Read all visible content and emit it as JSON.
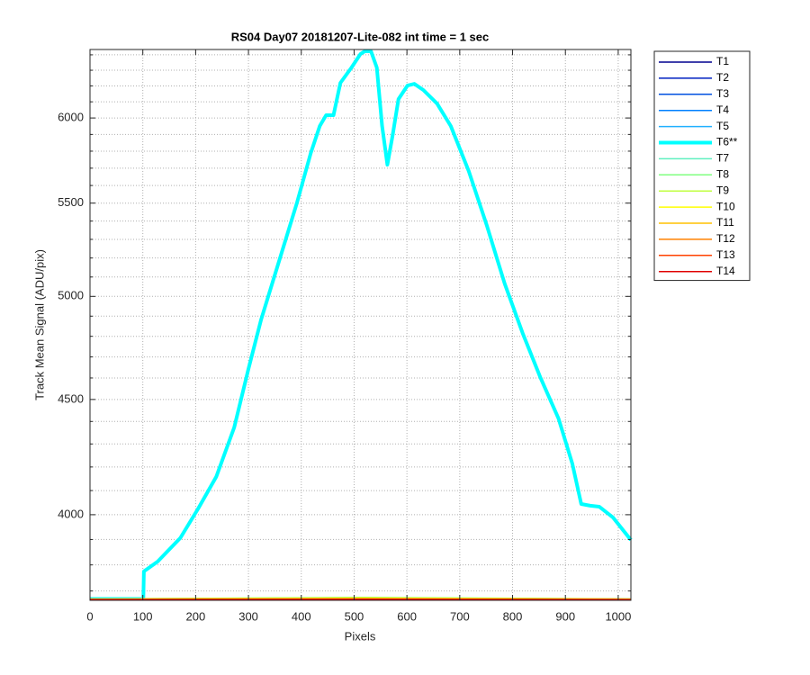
{
  "chart_data": {
    "type": "line",
    "title": "RS04 Day07 20181207-Lite-082 int time = 1 sec",
    "x_label": "Pixels",
    "y_label": "Track Mean Signal (ADU/pix)",
    "xlim": [
      0,
      1024
    ],
    "ylim": [
      3665,
      6435
    ],
    "yscale": "log",
    "grid": true,
    "xticks": [
      0,
      100,
      200,
      300,
      400,
      500,
      600,
      700,
      800,
      900,
      1000
    ],
    "yticks": [
      4000,
      4500,
      5000,
      5500,
      6000
    ],
    "minor_yticks": [
      3700,
      3800,
      3900,
      4100,
      4200,
      4300,
      4400,
      4600,
      4700,
      4800,
      4900,
      5100,
      5200,
      5300,
      5400,
      5600,
      5700,
      5800,
      5900,
      6100,
      6200,
      6300,
      6400
    ],
    "legend_position": "outside-right-top",
    "series": [
      {
        "name": "T1",
        "color": "#00008f",
        "linewidth": 1.5,
        "x": [
          0,
          512,
          1024
        ],
        "values": [
          3668,
          3668,
          3668
        ]
      },
      {
        "name": "T2",
        "color": "#0020c0",
        "linewidth": 1.5,
        "x": [
          0,
          512,
          1024
        ],
        "values": [
          3668,
          3669,
          3668
        ]
      },
      {
        "name": "T3",
        "color": "#0050e0",
        "linewidth": 1.5,
        "x": [
          0,
          512,
          1024
        ],
        "values": [
          3668,
          3670,
          3668
        ]
      },
      {
        "name": "T4",
        "color": "#0080ff",
        "linewidth": 1.5,
        "x": [
          0,
          512,
          1024
        ],
        "values": [
          3669,
          3671,
          3669
        ]
      },
      {
        "name": "T5",
        "color": "#20b0ff",
        "linewidth": 1.5,
        "x": [
          0,
          512,
          1024
        ],
        "values": [
          3669,
          3672,
          3669
        ]
      },
      {
        "name": "T6**",
        "color": "#00ffff",
        "linewidth": 4,
        "x": [
          0,
          99,
          101,
          102,
          128,
          171,
          205,
          239,
          273,
          300,
          324,
          358,
          392,
          418,
          435,
          447,
          461,
          474,
          495,
          512,
          520,
          532,
          543,
          553,
          563,
          573,
          584,
          601,
          614,
          631,
          657,
          683,
          717,
          751,
          785,
          819,
          853,
          887,
          913,
          930,
          947,
          964,
          990,
          1024
        ],
        "values": [
          3670,
          3670,
          3672,
          3775,
          3813,
          3906,
          4026,
          4158,
          4373,
          4643,
          4883,
          5184,
          5504,
          5789,
          5951,
          6017,
          6017,
          6219,
          6317,
          6405,
          6423,
          6423,
          6317,
          5951,
          5720,
          5896,
          6117,
          6202,
          6213,
          6174,
          6089,
          5951,
          5683,
          5378,
          5066,
          4816,
          4600,
          4413,
          4215,
          4044,
          4037,
          4033,
          3989,
          3898
        ]
      },
      {
        "name": "T7",
        "color": "#60f0c0",
        "linewidth": 1.5,
        "x": [
          0,
          512,
          1024
        ],
        "values": [
          3670,
          3674,
          3670
        ]
      },
      {
        "name": "T8",
        "color": "#80ff80",
        "linewidth": 1.5,
        "x": [
          0,
          512,
          1024
        ],
        "values": [
          3670,
          3676,
          3670
        ]
      },
      {
        "name": "T9",
        "color": "#c0ff40",
        "linewidth": 1.5,
        "x": [
          0,
          512,
          1024
        ],
        "values": [
          3670,
          3675,
          3670
        ]
      },
      {
        "name": "T10",
        "color": "#ffff00",
        "linewidth": 1.5,
        "x": [
          0,
          512,
          1024
        ],
        "values": [
          3669,
          3673,
          3669
        ]
      },
      {
        "name": "T11",
        "color": "#ffc000",
        "linewidth": 1.5,
        "x": [
          0,
          512,
          1024
        ],
        "values": [
          3669,
          3671,
          3669
        ]
      },
      {
        "name": "T12",
        "color": "#ff8000",
        "linewidth": 1.5,
        "x": [
          0,
          512,
          1024
        ],
        "values": [
          3668,
          3670,
          3668
        ]
      },
      {
        "name": "T13",
        "color": "#ff4000",
        "linewidth": 1.5,
        "x": [
          0,
          512,
          1024
        ],
        "values": [
          3668,
          3669,
          3668
        ]
      },
      {
        "name": "T14",
        "color": "#e00000",
        "linewidth": 1.5,
        "x": [
          0,
          512,
          1024
        ],
        "values": [
          3667,
          3668,
          3667
        ]
      }
    ]
  }
}
